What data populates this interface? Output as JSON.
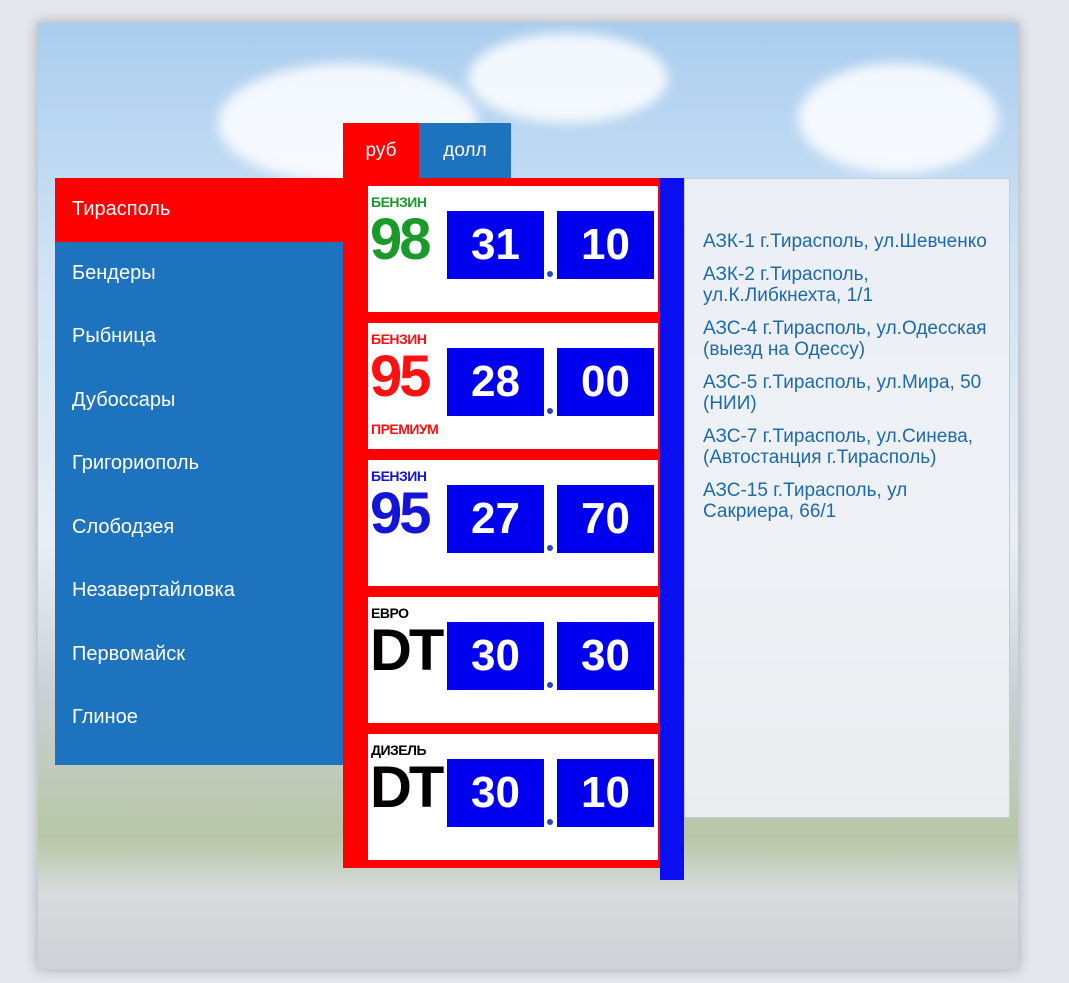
{
  "tabs": [
    {
      "label": "руб",
      "active": true
    },
    {
      "label": "долл",
      "active": false
    }
  ],
  "sidebar": {
    "items": [
      {
        "label": "Тирасполь",
        "active": true
      },
      {
        "label": "Бендеры"
      },
      {
        "label": "Рыбница"
      },
      {
        "label": "Дубоссары"
      },
      {
        "label": "Григориополь"
      },
      {
        "label": "Слободзея"
      },
      {
        "label": "Незавертайловка"
      },
      {
        "label": "Первомайск"
      },
      {
        "label": "Глиное"
      }
    ]
  },
  "fuels": [
    {
      "top": "БЕНЗИН",
      "big": "98",
      "bottom": "",
      "color": "#1a9a2a",
      "int": "31",
      "frac": "10"
    },
    {
      "top": "БЕНЗИН",
      "big": "95",
      "bottom": "ПРЕМИУМ",
      "color": "#ff1010",
      "int": "28",
      "frac": "00"
    },
    {
      "top": "БЕНЗИН",
      "big": "95",
      "bottom": "",
      "color": "#1414d8",
      "int": "27",
      "frac": "70"
    },
    {
      "top": "ЕВРО",
      "big": "DT",
      "bottom": "",
      "color": "#000000",
      "int": "30",
      "frac": "30"
    },
    {
      "top": "ДИЗЕЛЬ",
      "big": "DT",
      "bottom": "",
      "color": "#000000",
      "int": "30",
      "frac": "10"
    }
  ],
  "stations": [
    "АЗК-1 г.Тирасполь, ул.Шевченко",
    "АЗК-2 г.Тирасполь, ул.К.Либкнехта, 1/1",
    "АЗС-4 г.Тирасполь, ул.Одесская (выезд на Одессу)",
    "АЗС-5 г.Тирасполь, ул.Мира, 50 (НИИ)",
    "АЗС-7 г.Тирасполь, ул.Синева, (Автостанция г.Тирасполь)",
    "АЗС-15 г.Тирасполь, ул Сакриера, 66/1"
  ],
  "colors": {
    "accent_red": "#ff0000",
    "accent_blue": "#1e73be",
    "price_box": "#0000ee"
  }
}
